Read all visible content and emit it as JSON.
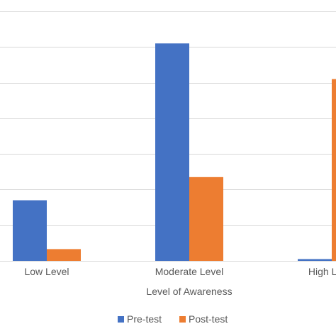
{
  "chart_data": {
    "type": "bar",
    "title": "",
    "xlabel": "Level of Awareness",
    "ylabel": "",
    "categories": [
      "Low Level",
      "Moderate Level",
      "High Level"
    ],
    "series": [
      {
        "name": "Pre-test",
        "color": "#4472C4",
        "values": [
          17,
          61,
          0.5
        ]
      },
      {
        "name": "Post-test",
        "color": "#ED7D31",
        "values": [
          3.3,
          23.5,
          51
        ]
      }
    ],
    "ylim": [
      0,
      70
    ],
    "ytick_step": 10,
    "grid": true,
    "legend": "bottom"
  }
}
